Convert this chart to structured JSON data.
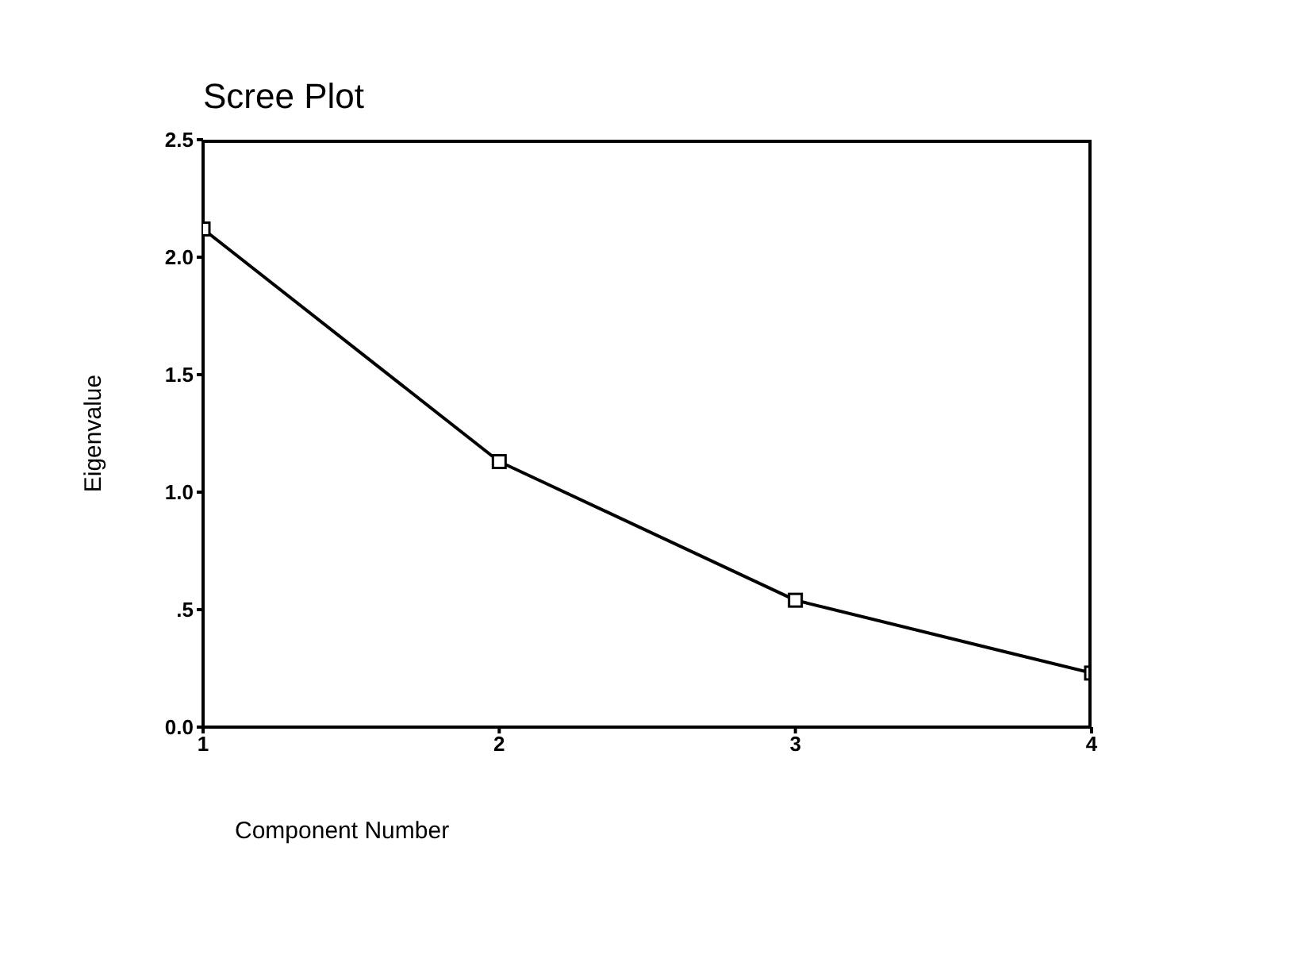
{
  "chart_data": {
    "type": "line",
    "title": "Scree Plot",
    "xlabel": "Component Number",
    "ylabel": "Eigenvalue",
    "x": [
      1,
      2,
      3,
      4
    ],
    "series": [
      {
        "color": "#000000",
        "values": [
          2.12,
          1.13,
          0.54,
          0.23
        ]
      }
    ],
    "xlim": [
      1,
      4
    ],
    "xticks": [
      1,
      2,
      3,
      4
    ],
    "ylim": [
      0,
      2.5
    ],
    "yticks": [
      {
        "value": 0,
        "label": "0.0"
      },
      {
        "value": 0.5,
        "label": ".5"
      },
      {
        "value": 1,
        "label": "1.0"
      },
      {
        "value": 1.5,
        "label": "1.5"
      },
      {
        "value": 2,
        "label": "2.0"
      },
      {
        "value": 2.5,
        "label": "2.5"
      }
    ],
    "marker": "square",
    "line_style": "solid",
    "grid": false,
    "legend": false
  }
}
